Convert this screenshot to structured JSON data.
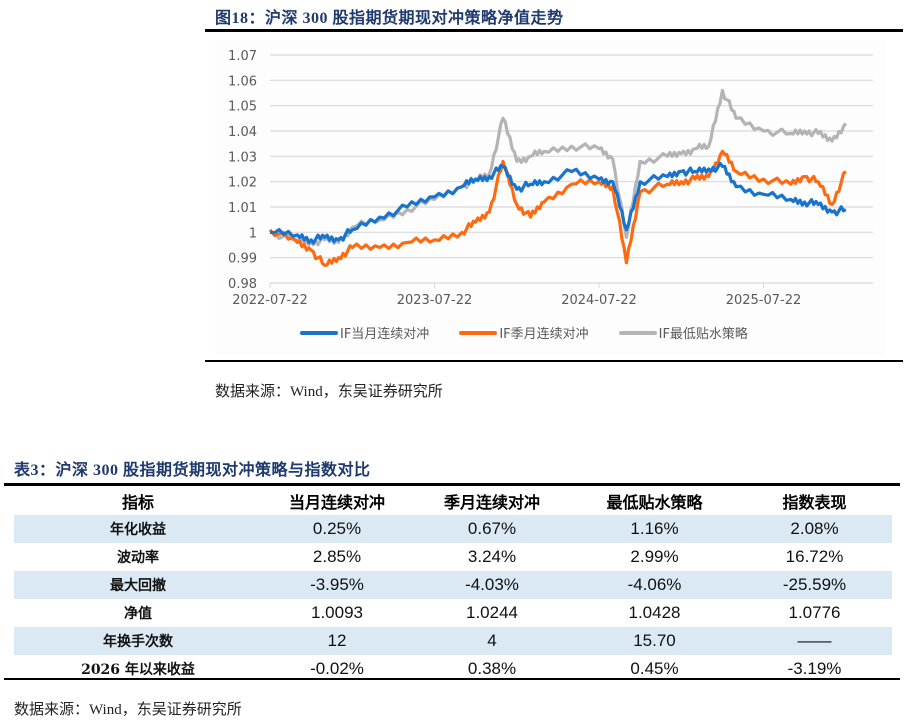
{
  "figure": {
    "title": "图18：沪深 300 股指期货期现对冲策略净值走势",
    "source": "数据来源：Wind，东吴证券研究所"
  },
  "chart_data": {
    "type": "line",
    "title": "沪深 300 股指期货期现对冲策略净值走势",
    "xlabel": "",
    "ylabel": "",
    "ylim": [
      0.98,
      1.07
    ],
    "yticks": [
      "1.07",
      "1.06",
      "1.05",
      "1.04",
      "1.03",
      "1.02",
      "1.01",
      "1",
      "0.99",
      "0.98"
    ],
    "xticks": [
      "2022-07-22",
      "2023-07-22",
      "2024-07-22",
      "2025-07-22"
    ],
    "grid": "horizontal",
    "legend_position": "bottom",
    "x": [
      "2022-07",
      "2022-09",
      "2022-10",
      "2022-11",
      "2022-12",
      "2023-01",
      "2023-03",
      "2023-05",
      "2023-07",
      "2023-09",
      "2023-10",
      "2023-11",
      "2023-12",
      "2024-01",
      "2024-02",
      "2024-03",
      "2024-05",
      "2024-07",
      "2024-08",
      "2024-09",
      "2024-10",
      "2024-12",
      "2025-01",
      "2025-02",
      "2025-03",
      "2025-04",
      "2025-05",
      "2025-07",
      "2025-09",
      "2025-10",
      "2025-11",
      "2025-12",
      "2026-01"
    ],
    "series": [
      {
        "name": "IF当月连续对冲",
        "color": "#1874CD",
        "values": [
          1.0,
          0.999,
          0.997,
          0.998,
          0.997,
          1.001,
          1.006,
          1.01,
          1.014,
          1.018,
          1.021,
          1.022,
          1.026,
          1.017,
          1.019,
          1.02,
          1.024,
          1.021,
          1.02,
          1.001,
          1.02,
          1.022,
          1.024,
          1.024,
          1.025,
          1.026,
          1.018,
          1.015,
          1.013,
          1.012,
          1.011,
          1.008,
          1.009
        ]
      },
      {
        "name": "IF季月连续对冲",
        "color": "#FF6A10",
        "values": [
          1.001,
          0.996,
          0.993,
          0.987,
          0.99,
          0.994,
          0.994,
          0.996,
          0.997,
          1.0,
          1.004,
          1.008,
          1.028,
          1.011,
          1.006,
          1.012,
          1.019,
          1.02,
          1.018,
          0.988,
          1.016,
          1.019,
          1.02,
          1.021,
          1.022,
          1.032,
          1.024,
          1.021,
          1.019,
          1.022,
          1.02,
          1.011,
          1.024
        ]
      },
      {
        "name": "IF最低贴水策略",
        "color": "#B4B4B4",
        "values": [
          1.0,
          0.997,
          0.996,
          0.997,
          0.996,
          1.002,
          1.005,
          1.009,
          1.013,
          1.018,
          1.021,
          1.023,
          1.045,
          1.028,
          1.03,
          1.032,
          1.034,
          1.033,
          1.029,
          0.998,
          1.028,
          1.03,
          1.031,
          1.033,
          1.034,
          1.056,
          1.045,
          1.04,
          1.039,
          1.04,
          1.039,
          1.036,
          1.043
        ]
      }
    ]
  },
  "table": {
    "title": "表3：沪深 300 股指期货期现对冲策略与指数对比",
    "headers": [
      "指标",
      "当月连续对冲",
      "季月连续对冲",
      "最低贴水策略",
      "指数表现"
    ],
    "rows": [
      [
        "年化收益",
        "0.25%",
        "0.67%",
        "1.16%",
        "2.08%"
      ],
      [
        "波动率",
        "2.85%",
        "3.24%",
        "2.99%",
        "16.72%"
      ],
      [
        "最大回撤",
        "-3.95%",
        "-4.03%",
        "-4.06%",
        "-25.59%"
      ],
      [
        "净值",
        "1.0093",
        "1.0244",
        "1.0428",
        "1.0776"
      ],
      [
        "年换手次数",
        "12",
        "4",
        "15.70",
        "——"
      ],
      [
        "2026 年以来收益",
        "-0.02%",
        "0.38%",
        "0.45%",
        "-3.19%"
      ]
    ],
    "source": "数据来源：Wind，东吴证券研究所"
  }
}
